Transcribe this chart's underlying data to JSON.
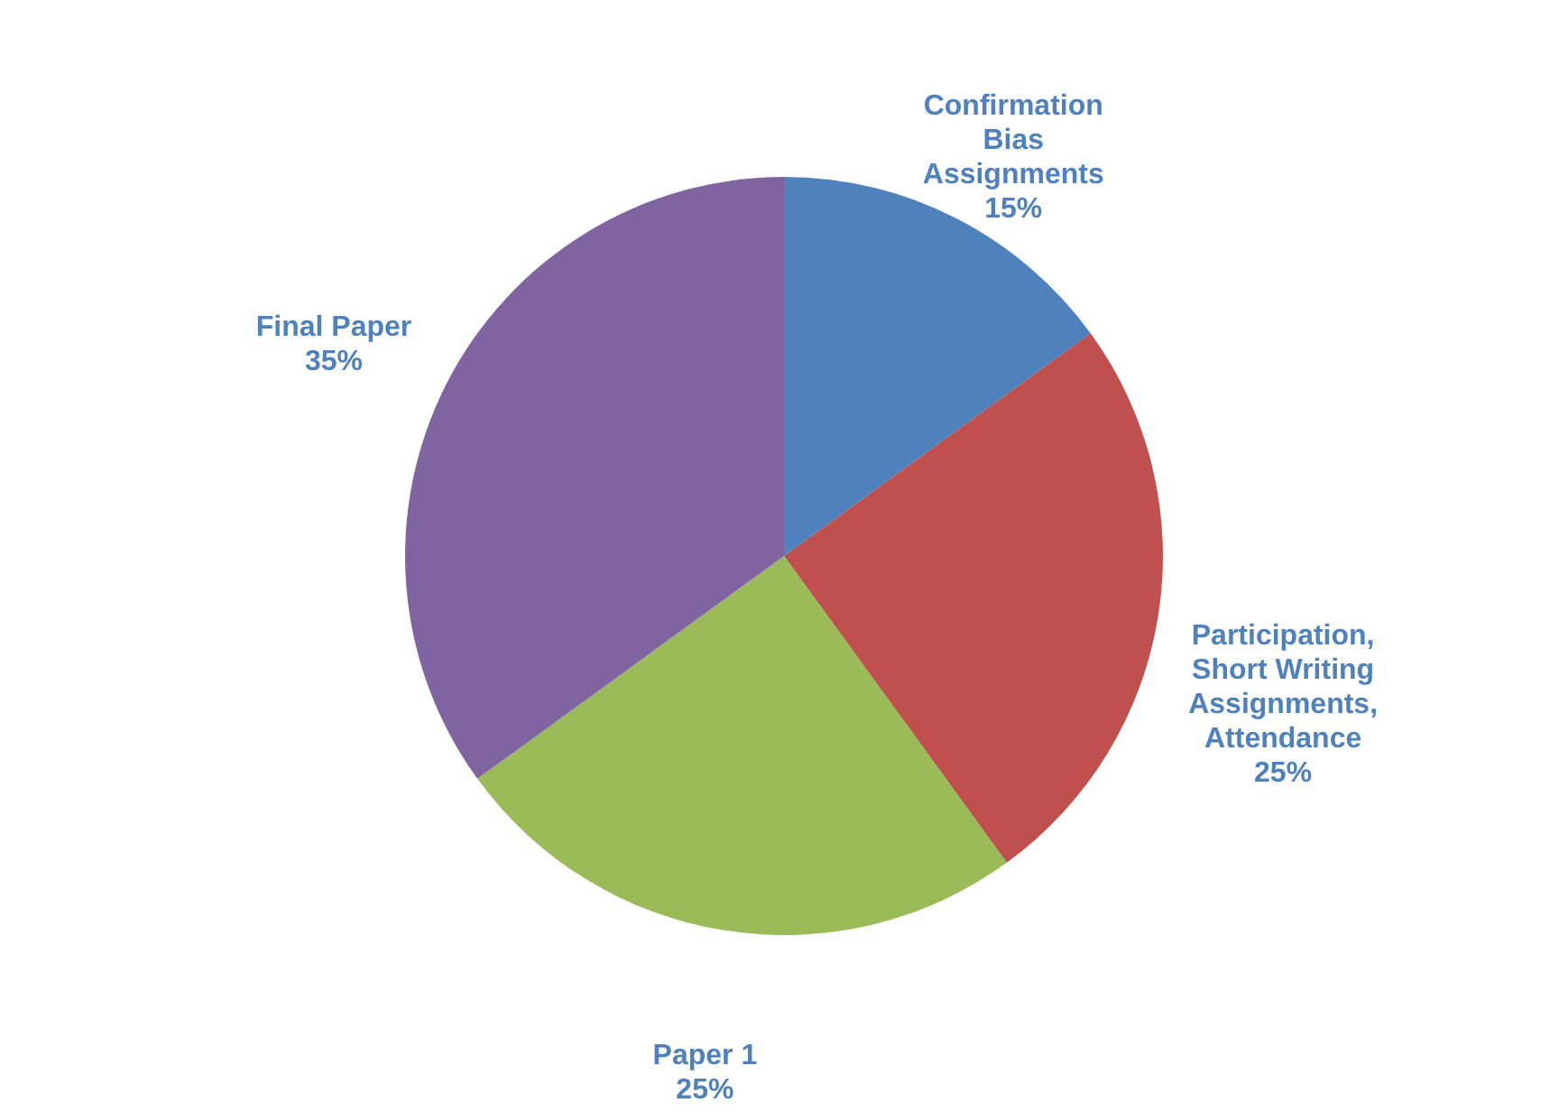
{
  "chart_data": {
    "type": "pie",
    "categories": [
      "Confirmation Bias Assignments",
      "Participation, Short Writing Assignments, Attendance",
      "Paper 1",
      "Final Paper"
    ],
    "values": [
      15,
      25,
      25,
      35
    ],
    "value_labels": [
      "15%",
      "25%",
      "25%",
      "35%"
    ],
    "colors": [
      "#4f81bd",
      "#c0504d",
      "#9bbb59",
      "#8064a2"
    ]
  }
}
